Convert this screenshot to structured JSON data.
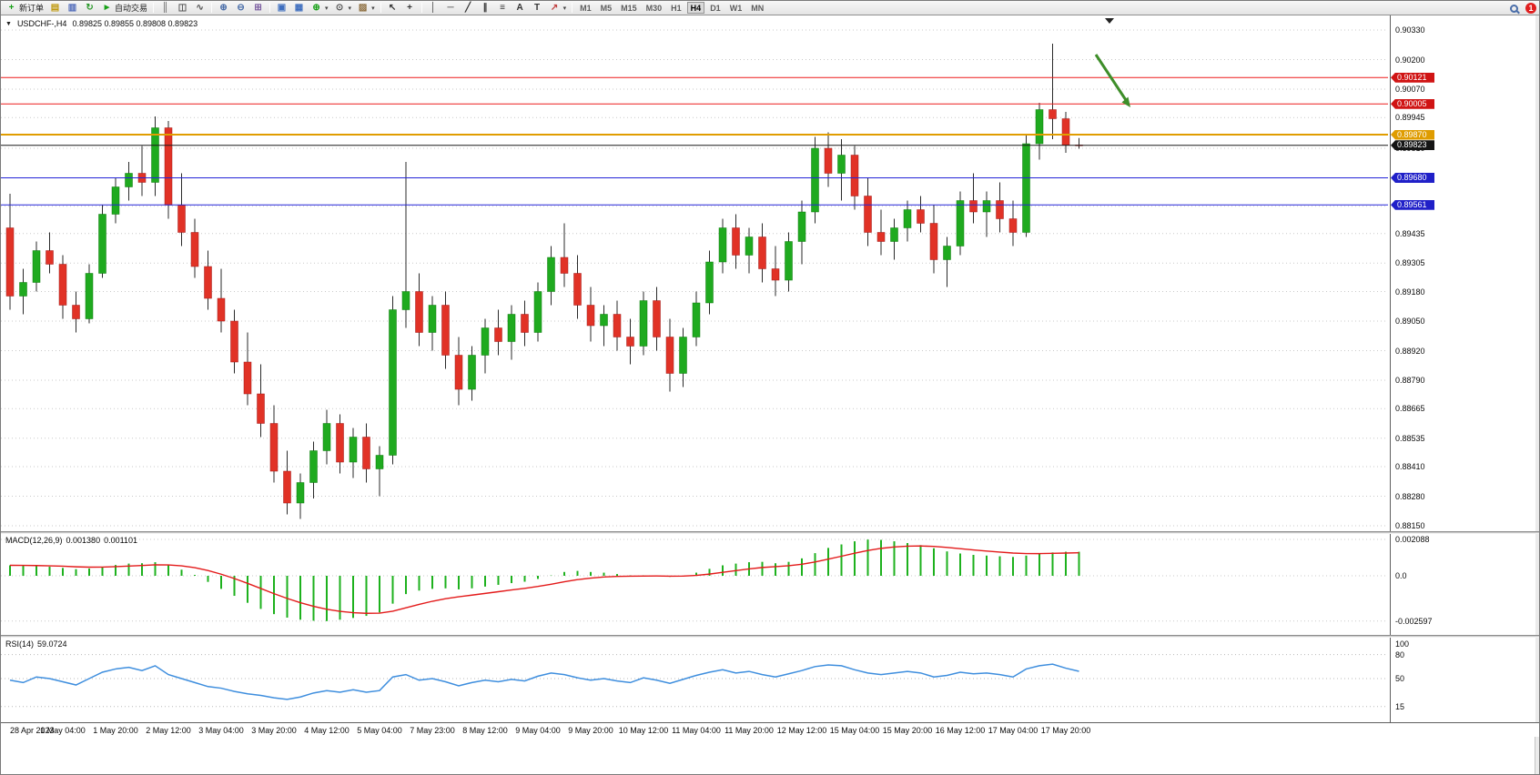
{
  "toolbar": {
    "new_order_label": "新订单",
    "auto_trading_label": "自动交易",
    "notification_count": "1",
    "timeframes": [
      "M1",
      "M5",
      "M15",
      "M30",
      "H1",
      "H4",
      "D1",
      "W1",
      "MN"
    ],
    "active_timeframe": "H4",
    "items": [
      {
        "t": "btn",
        "name": "new-order-button",
        "glyph": "+",
        "gc": "#17a017",
        "label": "新订单"
      },
      {
        "t": "ic",
        "name": "market-watch-icon",
        "glyph": "▤",
        "gc": "#c09a10"
      },
      {
        "t": "ic",
        "name": "navigator-icon",
        "glyph": "▥",
        "gc": "#4a66b8"
      },
      {
        "t": "ic",
        "name": "refresh-charts-icon",
        "glyph": "↻",
        "gc": "#2c9a2c"
      },
      {
        "t": "btn",
        "name": "auto-trading-button",
        "glyph": "►",
        "gc": "#17a017",
        "label": "自动交易"
      },
      {
        "t": "sep"
      },
      {
        "t": "ic",
        "name": "bar-chart-icon",
        "glyph": "║",
        "gc": "#555555"
      },
      {
        "t": "ic",
        "name": "candlestick-icon",
        "glyph": "◫",
        "gc": "#555555"
      },
      {
        "t": "ic",
        "name": "line-chart-icon",
        "glyph": "∿",
        "gc": "#555555"
      },
      {
        "t": "sep"
      },
      {
        "t": "ic",
        "name": "zoom-in-icon",
        "glyph": "⊕",
        "gc": "#4a6ea9"
      },
      {
        "t": "ic",
        "name": "zoom-out-icon",
        "glyph": "⊖",
        "gc": "#4a6ea9"
      },
      {
        "t": "ic",
        "name": "tile-windows-icon",
        "glyph": "⊞",
        "gc": "#7a5ca0"
      },
      {
        "t": "sep"
      },
      {
        "t": "ic",
        "name": "auto-arrange-icon",
        "glyph": "▣",
        "gc": "#3f6fbf"
      },
      {
        "t": "ic",
        "name": "chart-shift-icon",
        "glyph": "▦",
        "gc": "#3f6fbf"
      },
      {
        "t": "ic",
        "name": "indicators-button",
        "glyph": "⊕",
        "gc": "#17a017",
        "caret": true
      },
      {
        "t": "ic",
        "name": "periods-button",
        "glyph": "⊙",
        "gc": "#555555",
        "caret": true
      },
      {
        "t": "ic",
        "name": "templates-button",
        "glyph": "▨",
        "gc": "#8a6a3a",
        "caret": true
      },
      {
        "t": "sep"
      },
      {
        "t": "ic",
        "name": "cursor-icon",
        "glyph": "↖",
        "gc": "#333333"
      },
      {
        "t": "ic",
        "name": "crosshair-icon",
        "glyph": "+",
        "gc": "#333333"
      },
      {
        "t": "sep"
      },
      {
        "t": "ic",
        "name": "vertical-line-icon",
        "glyph": "│",
        "gc": "#333333"
      },
      {
        "t": "ic",
        "name": "horizontal-line-icon",
        "glyph": "─",
        "gc": "#333333"
      },
      {
        "t": "ic",
        "name": "trendline-icon",
        "glyph": "╱",
        "gc": "#333333"
      },
      {
        "t": "ic",
        "name": "channel-icon",
        "glyph": "∥",
        "gc": "#333333"
      },
      {
        "t": "ic",
        "name": "fibonacci-icon",
        "glyph": "≡",
        "gc": "#333333"
      },
      {
        "t": "ic",
        "name": "text-icon",
        "glyph": "A",
        "gc": "#333333"
      },
      {
        "t": "ic",
        "name": "text-label-icon",
        "glyph": "T",
        "gc": "#333333"
      },
      {
        "t": "ic",
        "name": "arrows-button",
        "glyph": "↗",
        "gc": "#c04040",
        "caret": true
      },
      {
        "t": "sep"
      }
    ]
  },
  "chart": {
    "collapse_glyph": "▼",
    "symbol_period": "USDCHF-,H4",
    "ohlc_text": "0.89825 0.89855 0.89808 0.89823",
    "price_ticks": [
      "0.90330",
      "0.90200",
      "0.90070",
      "0.89945",
      "0.89810",
      "0.89680",
      "0.89555",
      "0.89435",
      "0.89305",
      "0.89180",
      "0.89050",
      "0.88920",
      "0.88790",
      "0.88665",
      "0.88535",
      "0.88410",
      "0.88280",
      "0.88150"
    ],
    "badges": [
      {
        "text": "0.90121",
        "value": 0.90121,
        "bg": "#d01414"
      },
      {
        "text": "0.90005",
        "value": 0.90005,
        "bg": "#d01414"
      },
      {
        "text": "0.89870",
        "value": 0.8987,
        "bg": "#df9c00"
      },
      {
        "text": "0.89823",
        "value": 0.89823,
        "bg": "#151515"
      },
      {
        "text": "0.89680",
        "value": 0.8968,
        "bg": "#2020c8"
      },
      {
        "text": "0.89561",
        "value": 0.89561,
        "bg": "#2020c8"
      }
    ],
    "time_labels": [
      "28 Apr 2023",
      "1 May 04:00",
      "1 May 20:00",
      "2 May 12:00",
      "3 May 04:00",
      "3 May 20:00",
      "4 May 12:00",
      "5 May 04:00",
      "7 May 23:00",
      "8 May 12:00",
      "9 May 04:00",
      "9 May 20:00",
      "10 May 12:00",
      "11 May 04:00",
      "11 May 20:00",
      "12 May 12:00",
      "15 May 04:00",
      "15 May 20:00",
      "16 May 12:00",
      "17 May 04:00",
      "17 May 20:00"
    ],
    "annotation": {
      "name": "green-arrow",
      "color": "#3e8e29"
    }
  },
  "macd": {
    "name": "MACD(12,26,9)",
    "value1": "0.001380",
    "value2": "0.001101",
    "scale": [
      "0.002088",
      "0.0",
      "-0.002597"
    ]
  },
  "rsi": {
    "name": "RSI(14)",
    "value": "59.0724",
    "level_labels": [
      "100",
      "80",
      "50",
      "15"
    ]
  },
  "chart_data": [
    {
      "type": "candlestick",
      "title": "USDCHF- H4",
      "ylim": [
        0.8815,
        0.9033
      ],
      "colors": {
        "up": "#1faa1f",
        "down": "#e13226",
        "up_stroke": "#0c7a0c",
        "down_stroke": "#a01818",
        "wick": "#2a2a2a",
        "grid": "#c9c9c9"
      },
      "hlines": [
        {
          "value": 0.90121,
          "color": "#ee1c1c",
          "width": 1
        },
        {
          "value": 0.90005,
          "color": "#ee1c1c",
          "width": 1
        },
        {
          "value": 0.8987,
          "color": "#e09d00",
          "width": 2
        },
        {
          "value": 0.89823,
          "color": "#1a1a1a",
          "width": 1
        },
        {
          "value": 0.8968,
          "color": "#2424d8",
          "width": 1
        },
        {
          "value": 0.89561,
          "color": "#2424d8",
          "width": 1
        }
      ],
      "ohlc": [
        [
          0.8946,
          0.8961,
          0.891,
          0.8916
        ],
        [
          0.8916,
          0.8928,
          0.8908,
          0.8922
        ],
        [
          0.8922,
          0.894,
          0.8918,
          0.8936
        ],
        [
          0.8936,
          0.8944,
          0.8926,
          0.893
        ],
        [
          0.893,
          0.8934,
          0.8906,
          0.8912
        ],
        [
          0.8912,
          0.8918,
          0.89,
          0.8906
        ],
        [
          0.8906,
          0.893,
          0.8904,
          0.8926
        ],
        [
          0.8926,
          0.8956,
          0.8924,
          0.8952
        ],
        [
          0.8952,
          0.8968,
          0.8948,
          0.8964
        ],
        [
          0.8964,
          0.8975,
          0.8958,
          0.897
        ],
        [
          0.897,
          0.8982,
          0.896,
          0.8966
        ],
        [
          0.8966,
          0.8995,
          0.896,
          0.899
        ],
        [
          0.899,
          0.8993,
          0.895,
          0.8956
        ],
        [
          0.8956,
          0.897,
          0.8938,
          0.8944
        ],
        [
          0.8944,
          0.895,
          0.8924,
          0.8929
        ],
        [
          0.8929,
          0.8936,
          0.891,
          0.8915
        ],
        [
          0.8915,
          0.8928,
          0.89,
          0.8905
        ],
        [
          0.8905,
          0.891,
          0.8882,
          0.8887
        ],
        [
          0.8887,
          0.89,
          0.8868,
          0.8873
        ],
        [
          0.8873,
          0.8886,
          0.8854,
          0.886
        ],
        [
          0.886,
          0.8868,
          0.8834,
          0.8839
        ],
        [
          0.8839,
          0.8848,
          0.882,
          0.8825
        ],
        [
          0.8825,
          0.8838,
          0.8818,
          0.8834
        ],
        [
          0.8834,
          0.8852,
          0.8827,
          0.8848
        ],
        [
          0.8848,
          0.8866,
          0.8842,
          0.886
        ],
        [
          0.886,
          0.8864,
          0.8838,
          0.8843
        ],
        [
          0.8843,
          0.8858,
          0.8836,
          0.8854
        ],
        [
          0.8854,
          0.886,
          0.8834,
          0.884
        ],
        [
          0.884,
          0.885,
          0.8828,
          0.8846
        ],
        [
          0.8846,
          0.8916,
          0.8842,
          0.891
        ],
        [
          0.891,
          0.8975,
          0.8902,
          0.8918
        ],
        [
          0.8918,
          0.8926,
          0.8894,
          0.89
        ],
        [
          0.89,
          0.8916,
          0.8892,
          0.8912
        ],
        [
          0.8912,
          0.8918,
          0.8884,
          0.889
        ],
        [
          0.889,
          0.8898,
          0.8868,
          0.8875
        ],
        [
          0.8875,
          0.8894,
          0.887,
          0.889
        ],
        [
          0.889,
          0.8906,
          0.8882,
          0.8902
        ],
        [
          0.8902,
          0.891,
          0.889,
          0.8896
        ],
        [
          0.8896,
          0.8912,
          0.8888,
          0.8908
        ],
        [
          0.8908,
          0.8914,
          0.8894,
          0.89
        ],
        [
          0.89,
          0.8922,
          0.8896,
          0.8918
        ],
        [
          0.8918,
          0.8938,
          0.8912,
          0.8933
        ],
        [
          0.8933,
          0.8948,
          0.892,
          0.8926
        ],
        [
          0.8926,
          0.8934,
          0.8906,
          0.8912
        ],
        [
          0.8912,
          0.892,
          0.8896,
          0.8903
        ],
        [
          0.8903,
          0.8912,
          0.8894,
          0.8908
        ],
        [
          0.8908,
          0.8914,
          0.8892,
          0.8898
        ],
        [
          0.8898,
          0.8906,
          0.8886,
          0.8894
        ],
        [
          0.8894,
          0.8918,
          0.889,
          0.8914
        ],
        [
          0.8914,
          0.892,
          0.8892,
          0.8898
        ],
        [
          0.8898,
          0.8906,
          0.8874,
          0.8882
        ],
        [
          0.8882,
          0.8902,
          0.8876,
          0.8898
        ],
        [
          0.8898,
          0.8918,
          0.8894,
          0.8913
        ],
        [
          0.8913,
          0.8936,
          0.8908,
          0.8931
        ],
        [
          0.8931,
          0.895,
          0.8926,
          0.8946
        ],
        [
          0.8946,
          0.8952,
          0.8928,
          0.8934
        ],
        [
          0.8934,
          0.8946,
          0.8926,
          0.8942
        ],
        [
          0.8942,
          0.8948,
          0.8922,
          0.8928
        ],
        [
          0.8928,
          0.8938,
          0.8916,
          0.8923
        ],
        [
          0.8923,
          0.8944,
          0.8918,
          0.894
        ],
        [
          0.894,
          0.8958,
          0.893,
          0.8953
        ],
        [
          0.8953,
          0.8986,
          0.8948,
          0.8981
        ],
        [
          0.8981,
          0.8988,
          0.8964,
          0.897
        ],
        [
          0.897,
          0.8985,
          0.8958,
          0.8978
        ],
        [
          0.8978,
          0.8982,
          0.8954,
          0.896
        ],
        [
          0.896,
          0.8968,
          0.8938,
          0.8944
        ],
        [
          0.8944,
          0.8954,
          0.8934,
          0.894
        ],
        [
          0.894,
          0.895,
          0.8932,
          0.8946
        ],
        [
          0.8946,
          0.8958,
          0.894,
          0.8954
        ],
        [
          0.8954,
          0.896,
          0.8944,
          0.8948
        ],
        [
          0.8948,
          0.8956,
          0.8926,
          0.8932
        ],
        [
          0.8932,
          0.8942,
          0.892,
          0.8938
        ],
        [
          0.8938,
          0.8962,
          0.8934,
          0.8958
        ],
        [
          0.8958,
          0.897,
          0.8948,
          0.8953
        ],
        [
          0.8953,
          0.8962,
          0.8942,
          0.8958
        ],
        [
          0.8958,
          0.8966,
          0.8944,
          0.895
        ],
        [
          0.895,
          0.8958,
          0.8938,
          0.8944
        ],
        [
          0.8944,
          0.8987,
          0.8942,
          0.8983
        ],
        [
          0.8983,
          0.9001,
          0.8976,
          0.8998
        ],
        [
          0.8998,
          0.9027,
          0.8985,
          0.8994
        ],
        [
          0.8994,
          0.8997,
          0.8979,
          0.89825
        ],
        [
          0.89825,
          0.89855,
          0.89808,
          0.89823
        ]
      ]
    },
    {
      "type": "bar",
      "name": "MACD(12,26,9)",
      "color": "#1db11d",
      "signal_color": "#e31a1a",
      "signal_period": 9,
      "ylim": [
        -0.002597,
        0.002088
      ],
      "values": [
        0.0006,
        0.00058,
        0.00055,
        0.00052,
        0.00045,
        0.00038,
        0.00042,
        0.00052,
        0.00062,
        0.0007,
        0.00072,
        0.00078,
        0.0006,
        0.00035,
        5e-05,
        -0.00035,
        -0.00075,
        -0.00115,
        -0.00155,
        -0.0019,
        -0.0022,
        -0.0024,
        -0.00252,
        -0.00258,
        -0.0026,
        -0.00252,
        -0.00242,
        -0.0023,
        -0.0021,
        -0.0016,
        -0.00105,
        -0.00085,
        -0.00075,
        -0.00072,
        -0.00078,
        -0.00072,
        -0.00062,
        -0.00052,
        -0.00042,
        -0.00034,
        -0.00018,
        2e-05,
        0.00022,
        0.00028,
        0.00022,
        0.00018,
        0.0001,
        2e-05,
        2e-05,
        0.0,
        -6e-05,
        0.0,
        0.00018,
        0.0004,
        0.0006,
        0.0007,
        0.00078,
        0.0008,
        0.00072,
        0.0008,
        0.001,
        0.0013,
        0.0016,
        0.0018,
        0.00198,
        0.00208,
        0.00206,
        0.00198,
        0.00188,
        0.00176,
        0.00158,
        0.0014,
        0.00128,
        0.0012,
        0.00116,
        0.00112,
        0.00108,
        0.00116,
        0.00126,
        0.00134,
        0.00138,
        0.00138
      ]
    },
    {
      "type": "line",
      "name": "RSI(14)",
      "color": "#3e8ede",
      "levels": [
        80,
        50,
        15
      ],
      "last_value": 59.0724,
      "values": [
        48,
        45,
        52,
        50,
        46,
        42,
        50,
        58,
        62,
        64,
        60,
        66,
        55,
        50,
        45,
        40,
        38,
        34,
        31,
        29,
        26,
        24,
        27,
        32,
        35,
        33,
        36,
        33,
        35,
        52,
        55,
        48,
        50,
        46,
        41,
        45,
        48,
        46,
        49,
        47,
        53,
        57,
        55,
        51,
        48,
        50,
        47,
        45,
        51,
        48,
        44,
        49,
        54,
        58,
        61,
        57,
        59,
        55,
        52,
        56,
        60,
        65,
        67,
        66,
        61,
        57,
        55,
        57,
        59,
        57,
        52,
        54,
        58,
        56,
        57,
        55,
        52,
        62,
        66,
        68,
        63,
        59.07
      ]
    }
  ]
}
